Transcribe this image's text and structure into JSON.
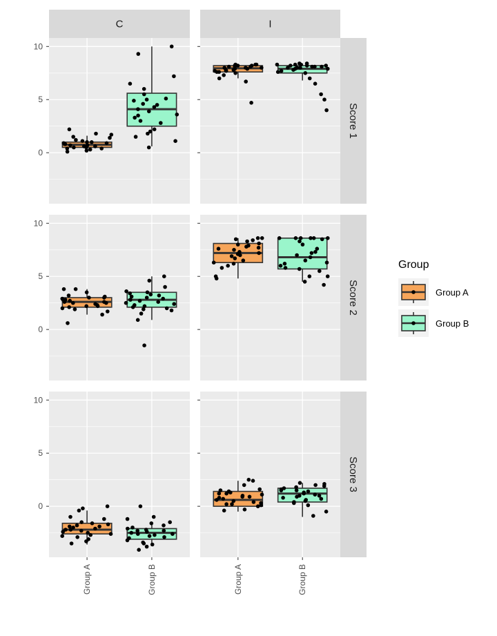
{
  "chart_data": {
    "type": "boxplot",
    "facet_cols": [
      "C",
      "I"
    ],
    "facet_rows": [
      "Score 1",
      "Score 2",
      "Score 3"
    ],
    "categories": [
      "Group A",
      "Group B"
    ],
    "ylim": [
      -4.8,
      10.8
    ],
    "yticks": [
      0,
      5,
      10
    ],
    "grid": true,
    "legend": {
      "title": "Group",
      "position": "right",
      "entries": [
        {
          "label": "Group A",
          "color": "#F6A55A"
        },
        {
          "label": "Group B",
          "color": "#9AF5CB"
        }
      ]
    },
    "panels": [
      {
        "col": "C",
        "row": "Score 1",
        "boxes": [
          {
            "group": "Group A",
            "min": 0.2,
            "q1": 0.5,
            "median": 0.75,
            "q3": 1.0,
            "max": 1.6
          },
          {
            "group": "Group B",
            "min": 0.6,
            "q1": 2.5,
            "median": 4.1,
            "q3": 5.6,
            "max": 10.0
          }
        ],
        "points": [
          {
            "group": "Group A",
            "values": [
              0.2,
              0.3,
              0.4,
              0.5,
              0.6,
              0.7,
              0.8,
              0.9,
              1.0,
              1.1,
              1.2,
              0.4,
              0.6,
              0.8,
              1.0,
              1.5,
              1.8,
              2.2,
              0.3,
              0.5,
              0.7,
              0.9,
              1.4,
              1.7,
              0.1
            ]
          },
          {
            "group": "Group B",
            "values": [
              0.5,
              1.1,
              1.5,
              1.8,
              2.2,
              2.8,
              3.0,
              3.3,
              3.6,
              3.9,
              4.1,
              4.3,
              4.6,
              4.9,
              5.1,
              5.5,
              6.0,
              6.5,
              7.2,
              9.3,
              10.0,
              2.0,
              3.5,
              4.5,
              5.0
            ]
          }
        ]
      },
      {
        "col": "I",
        "row": "Score 1",
        "boxes": [
          {
            "group": "Group A",
            "min": 7.0,
            "q1": 7.6,
            "median": 7.95,
            "q3": 8.2,
            "max": 8.3
          },
          {
            "group": "Group B",
            "min": 6.8,
            "q1": 7.5,
            "median": 7.9,
            "q3": 8.2,
            "max": 8.4
          }
        ],
        "points": [
          {
            "group": "Group A",
            "values": [
              4.7,
              6.7,
              7.0,
              7.3,
              7.5,
              7.6,
              7.7,
              7.8,
              7.9,
              8.0,
              8.0,
              8.1,
              8.1,
              8.2,
              8.2,
              8.3,
              8.3,
              7.9,
              7.8,
              8.0,
              8.1,
              7.6,
              7.7,
              8.2,
              8.3
            ]
          },
          {
            "group": "Group B",
            "values": [
              4.0,
              5.0,
              5.5,
              6.5,
              7.0,
              7.5,
              7.6,
              7.8,
              7.9,
              8.0,
              8.0,
              8.1,
              8.1,
              8.2,
              8.2,
              8.3,
              8.3,
              8.4,
              8.4,
              7.7,
              7.9,
              8.0,
              8.1,
              8.2,
              8.3
            ]
          }
        ]
      },
      {
        "col": "C",
        "row": "Score 2",
        "boxes": [
          {
            "group": "Group A",
            "min": 1.4,
            "q1": 2.1,
            "median": 2.6,
            "q3": 3.0,
            "max": 3.8
          },
          {
            "group": "Group B",
            "min": 0.9,
            "q1": 2.1,
            "median": 2.8,
            "q3": 3.5,
            "max": 5.0
          }
        ],
        "points": [
          {
            "group": "Group A",
            "values": [
              0.6,
              1.4,
              1.7,
              1.9,
              2.0,
              2.1,
              2.2,
              2.3,
              2.4,
              2.5,
              2.5,
              2.6,
              2.7,
              2.8,
              2.8,
              2.9,
              3.0,
              3.0,
              3.1,
              3.2,
              3.5,
              3.8,
              3.8,
              2.2,
              2.6
            ]
          },
          {
            "group": "Group B",
            "values": [
              -1.5,
              0.9,
              1.5,
              2.0,
              2.1,
              2.3,
              2.5,
              2.6,
              2.8,
              3.0,
              3.1,
              3.3,
              3.5,
              3.6,
              4.0,
              4.6,
              5.0,
              1.9,
              2.4,
              2.9,
              3.2,
              2.7,
              2.2,
              3.4,
              1.8
            ]
          }
        ]
      },
      {
        "col": "I",
        "row": "Score 2",
        "boxes": [
          {
            "group": "Group A",
            "min": 4.8,
            "q1": 6.3,
            "median": 7.2,
            "q3": 8.1,
            "max": 8.6
          },
          {
            "group": "Group B",
            "min": 4.5,
            "q1": 5.7,
            "median": 6.8,
            "q3": 8.6,
            "max": 8.6
          }
        ],
        "points": [
          {
            "group": "Group A",
            "values": [
              4.8,
              5.0,
              5.8,
              6.0,
              6.3,
              6.5,
              6.7,
              6.9,
              7.0,
              7.2,
              7.3,
              7.5,
              7.6,
              7.7,
              7.8,
              8.0,
              8.1,
              8.3,
              8.5,
              8.6,
              8.6,
              6.2,
              7.1,
              7.9,
              8.4
            ]
          },
          {
            "group": "Group B",
            "values": [
              4.2,
              4.5,
              5.0,
              5.0,
              5.5,
              5.7,
              6.0,
              6.3,
              6.5,
              6.8,
              7.0,
              7.3,
              7.6,
              8.0,
              8.3,
              8.5,
              8.6,
              8.6,
              8.6,
              8.6,
              8.6,
              8.6,
              6.2,
              7.2,
              5.8
            ]
          }
        ]
      },
      {
        "col": "C",
        "row": "Score 3",
        "boxes": [
          {
            "group": "Group A",
            "min": -3.6,
            "q1": -2.6,
            "median": -2.2,
            "q3": -1.6,
            "max": -0.4
          },
          {
            "group": "Group B",
            "min": -3.7,
            "q1": -3.1,
            "median": -2.5,
            "q3": -2.1,
            "max": -1.6
          }
        ],
        "points": [
          {
            "group": "Group A",
            "values": [
              -3.5,
              -3.1,
              -2.9,
              -2.8,
              -2.6,
              -2.5,
              -2.4,
              -2.3,
              -2.2,
              -2.1,
              -2.0,
              -1.9,
              -1.8,
              -1.7,
              -1.6,
              -1.5,
              -1.2,
              -1.0,
              -0.4,
              -0.2,
              0.0,
              -2.7,
              -2.2,
              -1.9,
              -3.3
            ]
          },
          {
            "group": "Group B",
            "values": [
              -4.1,
              -3.8,
              -3.6,
              -3.4,
              -3.2,
              -3.0,
              -2.9,
              -2.8,
              -2.7,
              -2.6,
              -2.5,
              -2.4,
              -2.3,
              -2.2,
              -2.1,
              -2.0,
              -1.8,
              -1.5,
              -1.2,
              -1.0,
              0.0,
              -3.5,
              -2.6,
              -2.3,
              -1.6
            ]
          }
        ]
      },
      {
        "col": "I",
        "row": "Score 3",
        "boxes": [
          {
            "group": "Group A",
            "min": -0.5,
            "q1": 0.0,
            "median": 0.6,
            "q3": 1.4,
            "max": 2.4
          },
          {
            "group": "Group B",
            "min": -1.0,
            "q1": 0.4,
            "median": 1.2,
            "q3": 1.7,
            "max": 2.2
          }
        ],
        "points": [
          {
            "group": "Group A",
            "values": [
              -0.4,
              -0.3,
              0.0,
              0.1,
              0.2,
              0.3,
              0.4,
              0.5,
              0.6,
              0.7,
              0.8,
              0.9,
              1.0,
              1.1,
              1.2,
              1.3,
              1.4,
              1.5,
              1.6,
              2.0,
              2.4,
              2.5,
              0.2,
              0.9,
              1.2
            ]
          },
          {
            "group": "Group B",
            "values": [
              -0.9,
              -0.5,
              0.1,
              0.3,
              0.4,
              0.5,
              0.6,
              0.8,
              0.9,
              1.0,
              1.1,
              1.2,
              1.3,
              1.4,
              1.5,
              1.6,
              1.7,
              1.8,
              1.9,
              2.0,
              2.1,
              2.2,
              0.7,
              1.0,
              1.5
            ]
          }
        ]
      }
    ]
  },
  "colors": {
    "panel_bg": "#EBEBEB",
    "strip_bg": "#D9D9D9",
    "grid": "#FFFFFF",
    "box_outline": "#333333",
    "point": "#000000"
  }
}
